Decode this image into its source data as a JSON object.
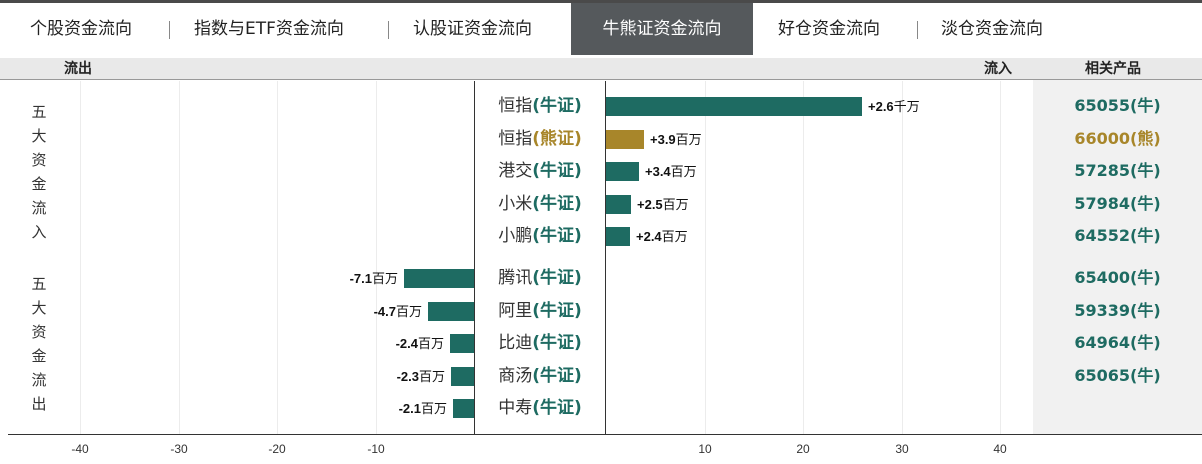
{
  "tabs": [
    {
      "label": "个股资金流向",
      "active": false
    },
    {
      "label": "指数与ETF资金流向",
      "active": false
    },
    {
      "label": "认股证资金流向",
      "active": false
    },
    {
      "label": "牛熊证资金流向",
      "active": true
    },
    {
      "label": "好仓资金流向",
      "active": false
    },
    {
      "label": "淡仓资金流向",
      "active": false
    }
  ],
  "header": {
    "outflow": "流出",
    "inflow": "流入",
    "related": "相关产品"
  },
  "side_labels": {
    "inflow": "五大资金流入",
    "outflow": "五大资金流出"
  },
  "colors": {
    "bull": "#1e6b62",
    "bear": "#a8862a",
    "tab_active_bg": "#55595c"
  },
  "chart_data": {
    "type": "bar",
    "orientation": "horizontal",
    "unit_note": "values in 百万 (millions)",
    "xlim": [
      -45,
      45
    ],
    "x_ticks": [
      "-40",
      "-30",
      "-20",
      "-10",
      "10",
      "20",
      "30",
      "40"
    ],
    "inflow": [
      {
        "underlying": "恒指",
        "type": "(牛证)",
        "kind": "bull",
        "value": 26,
        "label_num": "+2.6",
        "label_unit": "千万",
        "code": "65055(牛)"
      },
      {
        "underlying": "恒指",
        "type": "(熊证)",
        "kind": "bear",
        "value": 3.9,
        "label_num": "+3.9",
        "label_unit": "百万",
        "code": "66000(熊)"
      },
      {
        "underlying": "港交",
        "type": "(牛证)",
        "kind": "bull",
        "value": 3.4,
        "label_num": "+3.4",
        "label_unit": "百万",
        "code": "57285(牛)"
      },
      {
        "underlying": "小米",
        "type": "(牛证)",
        "kind": "bull",
        "value": 2.5,
        "label_num": "+2.5",
        "label_unit": "百万",
        "code": "57984(牛)"
      },
      {
        "underlying": "小鹏",
        "type": "(牛证)",
        "kind": "bull",
        "value": 2.4,
        "label_num": "+2.4",
        "label_unit": "百万",
        "code": "64552(牛)"
      }
    ],
    "outflow": [
      {
        "underlying": "腾讯",
        "type": "(牛证)",
        "kind": "bull",
        "value": -7.1,
        "label_num": "-7.1",
        "label_unit": "百万",
        "code": "65400(牛)"
      },
      {
        "underlying": "阿里",
        "type": "(牛证)",
        "kind": "bull",
        "value": -4.7,
        "label_num": "-4.7",
        "label_unit": "百万",
        "code": "59339(牛)"
      },
      {
        "underlying": "比迪",
        "type": "(牛证)",
        "kind": "bull",
        "value": -2.4,
        "label_num": "-2.4",
        "label_unit": "百万",
        "code": "64964(牛)"
      },
      {
        "underlying": "商汤",
        "type": "(牛证)",
        "kind": "bull",
        "value": -2.3,
        "label_num": "-2.3",
        "label_unit": "百万",
        "code": "65065(牛)"
      },
      {
        "underlying": "中寿",
        "type": "(牛证)",
        "kind": "bull",
        "value": -2.1,
        "label_num": "-2.1",
        "label_unit": "百万",
        "code": ""
      }
    ]
  }
}
